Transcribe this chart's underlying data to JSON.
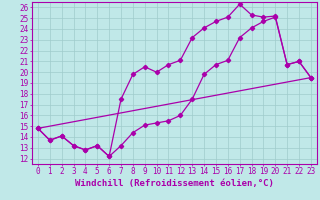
{
  "xlabel": "Windchill (Refroidissement éolien,°C)",
  "xlim": [
    -0.5,
    23.5
  ],
  "ylim": [
    11.5,
    26.5
  ],
  "xtick_vals": [
    0,
    1,
    2,
    3,
    4,
    5,
    6,
    7,
    8,
    9,
    10,
    11,
    12,
    13,
    14,
    15,
    16,
    17,
    18,
    19,
    20,
    21,
    22,
    23
  ],
  "xtick_labels": [
    "0",
    "1",
    "2",
    "3",
    "4",
    "5",
    "6",
    "7",
    "8",
    "9",
    "10",
    "11",
    "12",
    "13",
    "14",
    "15",
    "16",
    "17",
    "18",
    "19",
    "20",
    "21",
    "22",
    "23"
  ],
  "ytick_vals": [
    12,
    13,
    14,
    15,
    16,
    17,
    18,
    19,
    20,
    21,
    22,
    23,
    24,
    25,
    26
  ],
  "ytick_labels": [
    "12",
    "13",
    "14",
    "15",
    "16",
    "17",
    "18",
    "19",
    "20",
    "21",
    "22",
    "23",
    "24",
    "25",
    "26"
  ],
  "background_color": "#c0e8e8",
  "grid_color": "#a0cccc",
  "line_color": "#aa00aa",
  "line1_x": [
    0,
    1,
    2,
    3,
    4,
    5,
    6,
    7,
    8,
    9,
    10,
    11,
    12,
    13,
    14,
    15,
    16,
    17,
    18,
    19,
    20,
    21,
    22,
    23
  ],
  "line1_y": [
    14.8,
    13.7,
    14.1,
    13.2,
    12.8,
    13.2,
    12.2,
    13.2,
    14.4,
    15.1,
    15.3,
    15.5,
    16.0,
    17.5,
    19.8,
    20.7,
    21.1,
    23.2,
    24.1,
    24.7,
    25.1,
    20.7,
    21.0,
    19.5
  ],
  "line2_x": [
    0,
    1,
    2,
    3,
    4,
    5,
    6,
    7,
    8,
    9,
    10,
    11,
    12,
    13,
    14,
    15,
    16,
    17,
    18,
    19,
    20,
    21,
    22,
    23
  ],
  "line2_y": [
    14.8,
    13.7,
    14.1,
    13.2,
    12.8,
    13.2,
    12.2,
    17.5,
    19.8,
    20.5,
    20.0,
    20.7,
    21.1,
    23.2,
    24.1,
    24.7,
    25.1,
    26.3,
    25.3,
    25.1,
    25.2,
    20.7,
    21.0,
    19.5
  ],
  "line3_x": [
    0,
    23
  ],
  "line3_y": [
    14.8,
    19.5
  ],
  "tick_fontsize": 5.5,
  "xlabel_fontsize": 6.5,
  "line_width": 0.9,
  "marker": "D",
  "marker_size": 2.2
}
